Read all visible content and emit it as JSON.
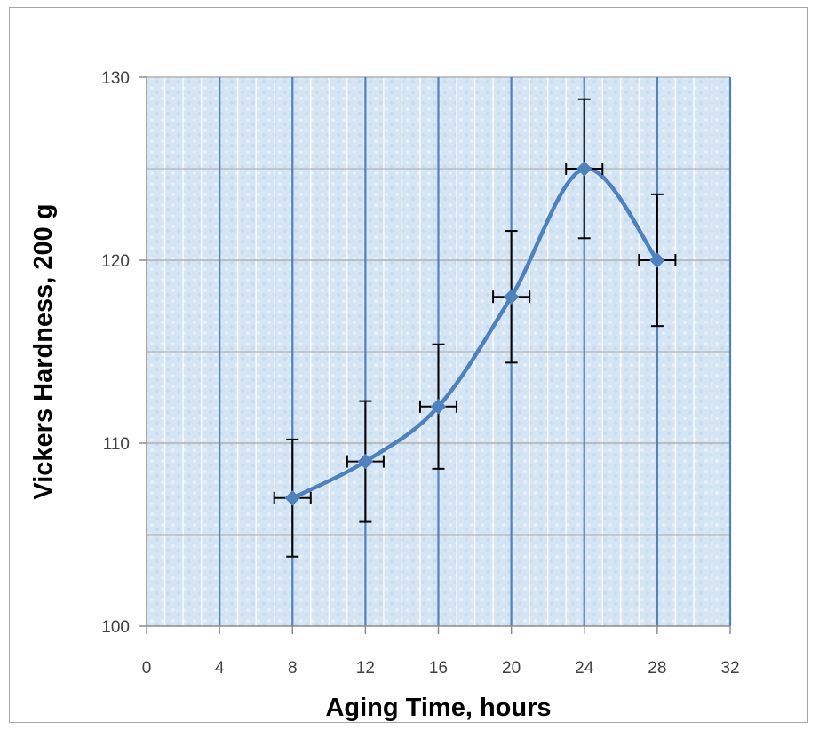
{
  "chart_data": {
    "type": "line",
    "title": "",
    "xlabel": "Aging Time, hours",
    "ylabel": "Vickers Hardness, 200 g",
    "xlim": [
      0,
      32
    ],
    "ylim": [
      100,
      130
    ],
    "x_ticks": [
      0,
      4,
      8,
      12,
      16,
      20,
      24,
      28,
      32
    ],
    "y_ticks": [
      100,
      110,
      120,
      130
    ],
    "x_tick_labels": [
      "0",
      "4",
      "8",
      "12",
      "16",
      "20",
      "24",
      "28",
      "32"
    ],
    "y_tick_labels": [
      "100",
      "110",
      "120",
      "130"
    ],
    "grid": true,
    "smoothed": true,
    "series": [
      {
        "x": [
          8,
          12,
          16,
          20,
          24,
          28
        ],
        "y": [
          107,
          109,
          112,
          118,
          125,
          120
        ],
        "y_error": [
          3.2,
          3.3,
          3.4,
          3.6,
          3.8,
          3.6
        ],
        "x_error": [
          1,
          1,
          1,
          1,
          1,
          1
        ]
      }
    ],
    "colors": {
      "line": "#4f81bd",
      "plot_background": "#dbe8f5",
      "major_grid_vertical": "#4f81bd",
      "grid": "#b0b0b0",
      "error_bar": "#000000"
    }
  }
}
